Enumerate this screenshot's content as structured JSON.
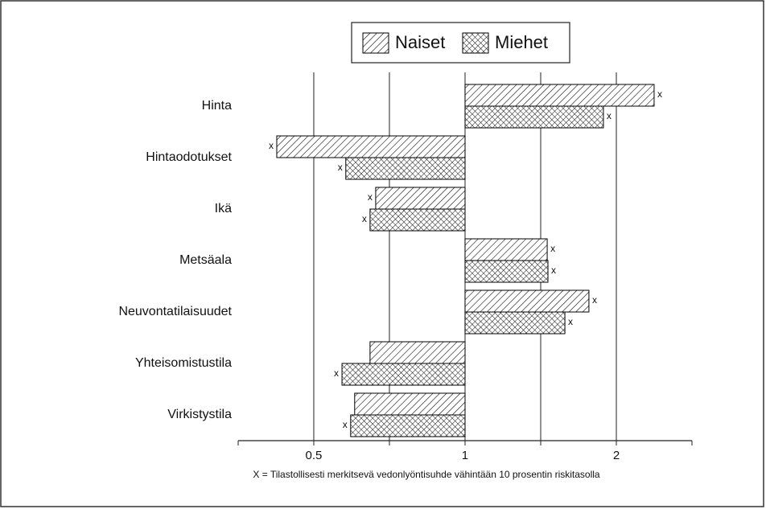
{
  "chart_data": {
    "type": "hbar",
    "categories": [
      "Hinta",
      "Hintaodotukset",
      "Ikä",
      "Metsäala",
      "Neuvontatilaisuudet",
      "Yhteisomistustila",
      "Virkistystila"
    ],
    "series": [
      {
        "name": "Naiset",
        "color": "#000000",
        "pattern": "hatch",
        "values": [
          2.378,
          0.422,
          0.664,
          1.457,
          1.764,
          0.647,
          0.603
        ],
        "significant": [
          true,
          true,
          true,
          true,
          true,
          false,
          false
        ]
      },
      {
        "name": "Miehet",
        "color": "#000000",
        "pattern": "crosshatch",
        "values": [
          1.885,
          0.579,
          0.647,
          1.462,
          1.58,
          0.569,
          0.592
        ],
        "significant": [
          true,
          true,
          true,
          true,
          true,
          true,
          true
        ]
      }
    ],
    "marker_label": "x",
    "baseline": 1,
    "xscale": "log",
    "xlim": [
      0.3536,
      2.8284
    ],
    "xticks": [
      0.5,
      1,
      2
    ],
    "minor_xticks": [
      0.7071,
      1.4142
    ],
    "grid": true,
    "legend": "top",
    "footnote": "X = Tilastollisesti merkitsevä vedonlyöntisuhde vähintään 10 prosentin riskitasolla"
  }
}
